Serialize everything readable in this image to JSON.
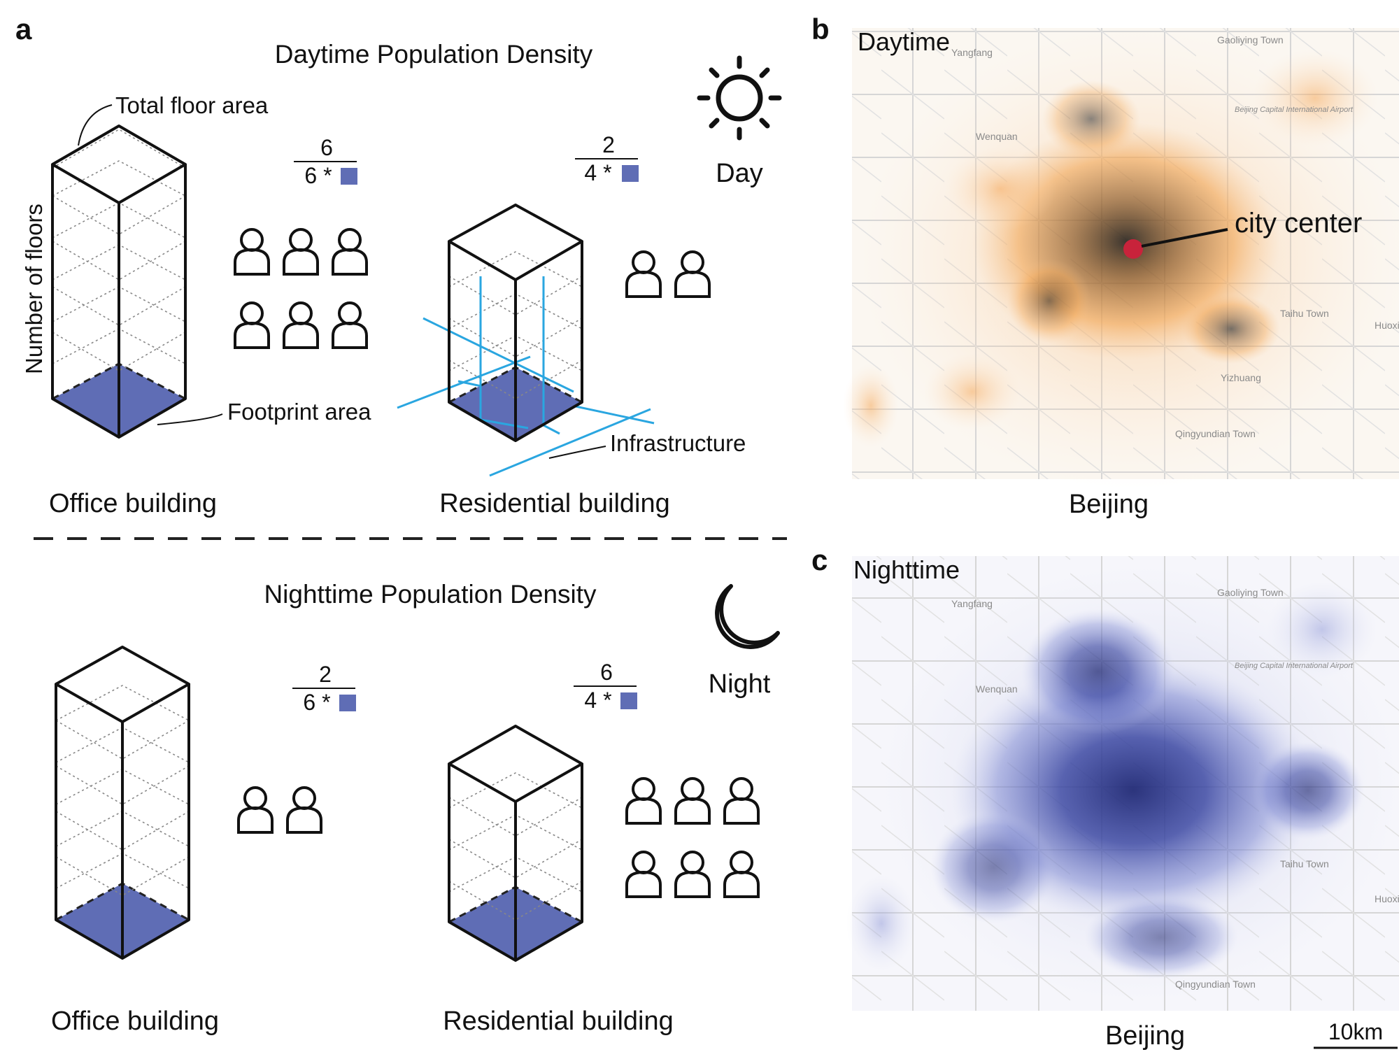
{
  "panel_labels": {
    "a": "a",
    "b": "b",
    "c": "c"
  },
  "day": {
    "title": "Daytime Population Density",
    "sun_label": "Day",
    "labels": {
      "total_floor_area": "Total floor area",
      "number_of_floors": "Number of floors",
      "footprint_area": "Footprint area",
      "infrastructure": "Infrastructure"
    },
    "office": {
      "caption": "Office building",
      "numerator": "6",
      "denominator": "6 *",
      "people": 6
    },
    "residential": {
      "caption": "Residential building",
      "numerator": "2",
      "denominator": "4 *",
      "people": 2
    }
  },
  "night": {
    "title": "Nighttime Population Density",
    "moon_label": "Night",
    "office": {
      "caption": "Office building",
      "numerator": "2",
      "denominator": "6 *",
      "people": 2
    },
    "residential": {
      "caption": "Residential building",
      "numerator": "6",
      "denominator": "4 *",
      "people": 6
    }
  },
  "map_day": {
    "title": "Daytime",
    "annotation": "city center",
    "caption": "Beijing",
    "colors": {
      "low": "#f7b36a",
      "high": "#111111",
      "center_marker": "#c8233b"
    },
    "place_labels": [
      "Yangfang",
      "Gaoliying Town",
      "Beijing Capital International Airport",
      "Wenquan",
      "Taihu Town",
      "Yizhuang",
      "Qingyundian Town",
      "Huoxian"
    ]
  },
  "map_night": {
    "title": "Nighttime",
    "caption": "Beijing",
    "scale_bar": "10km",
    "colors": {
      "low": "#b9bfe6",
      "high": "#1b2470"
    },
    "place_labels": [
      "Yangfang",
      "Gaoliying Town",
      "Beijing Capital International Airport",
      "Wenquan",
      "Taihu Town",
      "Qingyundian Town",
      "Huoxian"
    ]
  },
  "colors": {
    "footprint": "#5f6db5",
    "infrastructure": "#2aa6e0"
  }
}
